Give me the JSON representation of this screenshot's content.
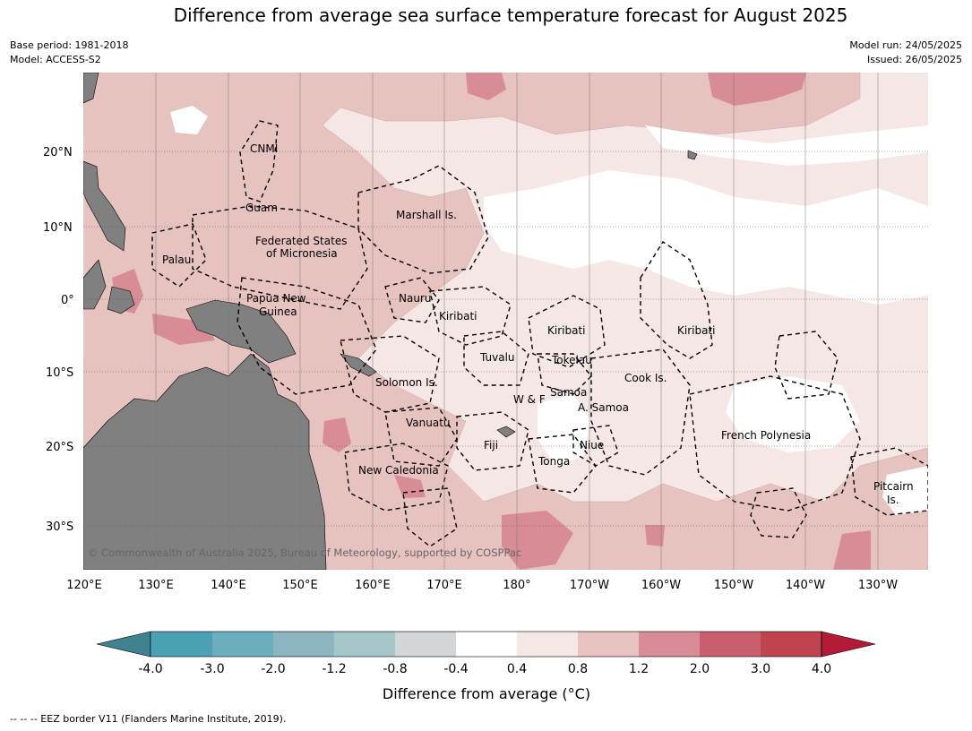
{
  "title": "Difference from average sea surface temperature forecast for August 2025",
  "meta_left": [
    "Base period: 1981-2018",
    "Model: ACCESS-S2"
  ],
  "meta_right": [
    "Model run: 24/05/2025",
    "Issued: 26/05/2025"
  ],
  "lat_ticks": [
    "20°N",
    "10°N",
    "0°",
    "10°S",
    "20°S",
    "30°S"
  ],
  "lon_ticks": [
    "120°E",
    "130°E",
    "140°E",
    "150°E",
    "160°E",
    "170°E",
    "180°",
    "170°W",
    "160°W",
    "150°W",
    "140°W",
    "130°W"
  ],
  "regions": [
    {
      "name": "CNMI"
    },
    {
      "name": "Guam"
    },
    {
      "name": "Marshall Is."
    },
    {
      "name": "Federated States"
    },
    {
      "name": "of Micronesia"
    },
    {
      "name": "Palau"
    },
    {
      "name": "Papua New"
    },
    {
      "name": "Guinea"
    },
    {
      "name": "Nauru"
    },
    {
      "name": "Kiribati"
    },
    {
      "name": "Kiribati"
    },
    {
      "name": "Kiribati"
    },
    {
      "name": "Tuvalu"
    },
    {
      "name": "Tokelau"
    },
    {
      "name": "Cook Is."
    },
    {
      "name": "Solomon Is."
    },
    {
      "name": "W & F"
    },
    {
      "name": "Samoa"
    },
    {
      "name": "A. Samoa"
    },
    {
      "name": "Vanuatu"
    },
    {
      "name": "Fiji"
    },
    {
      "name": "Niue"
    },
    {
      "name": "Tonga"
    },
    {
      "name": "New Caledonia"
    },
    {
      "name": "French Polynesia"
    },
    {
      "name": "Pitcairn"
    },
    {
      "name": "Is."
    }
  ],
  "copyright": "© Commonwealth of Australia 2025, Bureau of Meteorology, supported by COSPPac",
  "colorbar": {
    "title": "Difference from average (°C)",
    "ticks": [
      "-4.0",
      "-3.0",
      "-2.0",
      "-1.2",
      "-0.8",
      "-0.4",
      "0.4",
      "0.8",
      "1.2",
      "2.0",
      "3.0",
      "4.0"
    ],
    "colors": [
      "#3f8390",
      "#4aa1b3",
      "#6caebd",
      "#8ab5c1",
      "#a7c6ca",
      "#d3d6d8",
      "#ffffff",
      "#f5e7e6",
      "#e7c3c0",
      "#d88c95",
      "#c95f6e",
      "#c04450",
      "#b21a35"
    ]
  },
  "palette": {
    "land": "#808080",
    "ocean_default": "#f5e7e6"
  },
  "footer": "-- -- -- EEZ border V11 (Flanders Marine Institute, 2019)."
}
